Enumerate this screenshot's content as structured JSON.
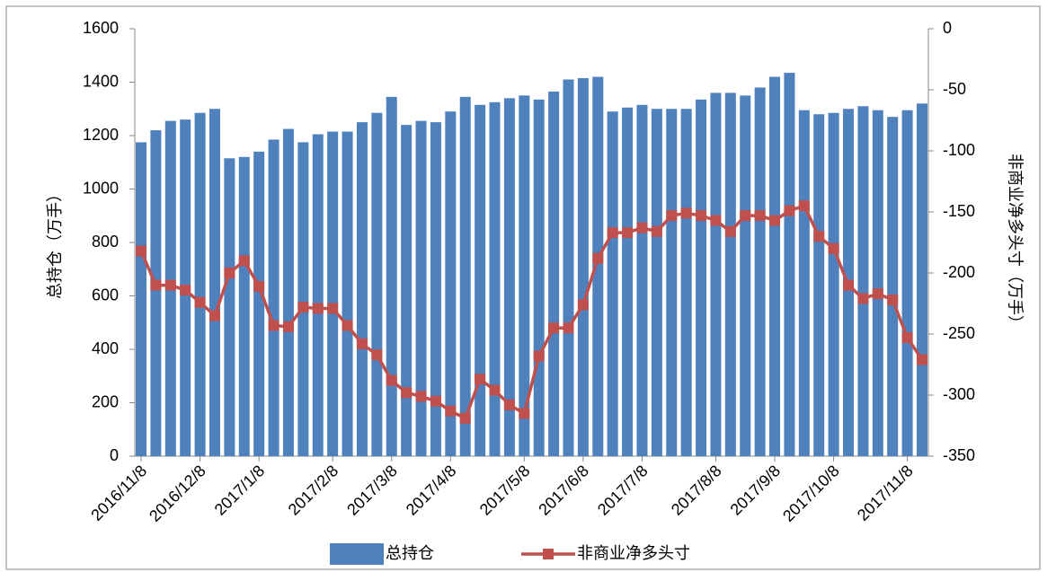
{
  "chart_data": {
    "type": "bar_line",
    "categories": [
      "2016/11/8",
      null,
      null,
      null,
      "2016/12/8",
      null,
      null,
      null,
      "2017/1/8",
      null,
      null,
      null,
      null,
      "2017/2/8",
      null,
      null,
      null,
      "2017/3/8",
      null,
      null,
      null,
      "2017/4/8",
      null,
      null,
      null,
      null,
      "2017/5/8",
      null,
      null,
      null,
      "2017/6/8",
      null,
      null,
      null,
      "2017/7/8",
      null,
      null,
      null,
      null,
      "2017/8/8",
      null,
      null,
      null,
      "2017/9/8",
      null,
      null,
      null,
      "2017/10/8",
      null,
      null,
      null,
      null,
      "2017/11/8",
      null
    ],
    "ylabel": "总持仓（万手）",
    "y2label": "非商业净多头寸（万手）",
    "ylim": [
      0,
      1600
    ],
    "yticks": [
      0,
      200,
      400,
      600,
      800,
      1000,
      1200,
      1400,
      1600
    ],
    "y2lim": [
      -350,
      0
    ],
    "y2ticks": [
      -350,
      -300,
      -250,
      -200,
      -150,
      -100,
      -50,
      0
    ],
    "grid": false,
    "legend": "bottom",
    "series": [
      {
        "name": "总持仓",
        "kind": "bar",
        "color": "#4f81bd",
        "values": [
          1175,
          1220,
          1255,
          1260,
          1285,
          1300,
          1115,
          1120,
          1140,
          1185,
          1225,
          1175,
          1205,
          1215,
          1215,
          1250,
          1285,
          1345,
          1240,
          1255,
          1250,
          1290,
          1345,
          1315,
          1325,
          1340,
          1350,
          1335,
          1365,
          1410,
          1415,
          1420,
          1290,
          1305,
          1315,
          1300,
          1300,
          1300,
          1335,
          1360,
          1360,
          1350,
          1380,
          1420,
          1435,
          1295,
          1280,
          1285,
          1300,
          1310,
          1295,
          1270,
          1295,
          1320
        ]
      },
      {
        "name": "非商业净多头寸",
        "kind": "line",
        "axis": "y2",
        "color": "#c0504d",
        "values": [
          -182,
          -210,
          -210,
          -214,
          -224,
          -235,
          -200,
          -190,
          -211,
          -243,
          -244,
          -228,
          -229,
          -229,
          -243,
          -258,
          -267,
          -288,
          -298,
          -301,
          -305,
          -313,
          -319,
          -287,
          -296,
          -308,
          -315,
          -268,
          -245,
          -245,
          -226,
          -188,
          -167,
          -167,
          -163,
          -166,
          -153,
          -151,
          -153,
          -157,
          -166,
          -153,
          -153,
          -157,
          -149,
          -145,
          -170,
          -180,
          -210,
          -221,
          -217,
          -222,
          -253,
          -271
        ]
      }
    ]
  }
}
